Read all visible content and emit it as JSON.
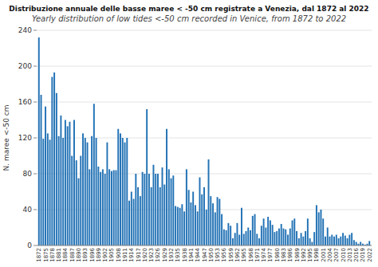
{
  "chart_data": {
    "type": "bar",
    "title": "Distribuzione annuale delle basse maree < -50 cm registrate a Venezia, dal 1872 al 2022",
    "subtitle": "Yearly distribution of low tides <-50 cm recorded in Venice, from 1872 to 2022",
    "ylabel": "N. maree <-50 cm",
    "color": "#2272b5",
    "ylim": [
      0,
      240
    ],
    "yticks": [
      0,
      40,
      80,
      120,
      160,
      200,
      240
    ],
    "grid": true,
    "categories": [
      "1872",
      null,
      null,
      "1875",
      null,
      null,
      "1878",
      null,
      null,
      "1881",
      null,
      null,
      "1884",
      null,
      null,
      "1887",
      null,
      null,
      "1890",
      null,
      null,
      "1893",
      null,
      null,
      "1896",
      null,
      null,
      "1899",
      null,
      null,
      "1902",
      null,
      null,
      "1905",
      null,
      null,
      "1908",
      null,
      null,
      "1911",
      null,
      null,
      "1914",
      null,
      null,
      "1917",
      null,
      null,
      "1920",
      null,
      null,
      "1923",
      null,
      null,
      "1926",
      null,
      null,
      "1929",
      null,
      null,
      "1932",
      null,
      null,
      "1935",
      null,
      null,
      "1938",
      null,
      null,
      "1941",
      null,
      null,
      "1944",
      null,
      null,
      "1947",
      null,
      null,
      "1950",
      null,
      null,
      "1953",
      null,
      null,
      "1956",
      null,
      null,
      "1959",
      null,
      null,
      "1962",
      null,
      null,
      "1965",
      null,
      null,
      "1968",
      null,
      null,
      "1971",
      null,
      null,
      "1974",
      null,
      null,
      "1977",
      null,
      null,
      "1980",
      null,
      null,
      "1983",
      null,
      null,
      "1986",
      null,
      null,
      "1989",
      null,
      null,
      "1992",
      null,
      null,
      "1995",
      null,
      null,
      "1998",
      null,
      null,
      "2001",
      null,
      null,
      "2004",
      null,
      null,
      "2007",
      null,
      null,
      "2010",
      null,
      null,
      "2013",
      null,
      null,
      "2016",
      null,
      null,
      "2019",
      null,
      null,
      "2022"
    ],
    "values": [
      232,
      168,
      119,
      155,
      125,
      118,
      188,
      193,
      170,
      122,
      145,
      120,
      140,
      133,
      138,
      100,
      140,
      95,
      75,
      100,
      125,
      120,
      115,
      85,
      122,
      158,
      120,
      88,
      82,
      85,
      80,
      115,
      85,
      83,
      84,
      84,
      130,
      125,
      120,
      115,
      120,
      50,
      60,
      52,
      80,
      65,
      55,
      82,
      80,
      152,
      80,
      65,
      90,
      80,
      80,
      65,
      87,
      68,
      130,
      85,
      75,
      78,
      44,
      43,
      42,
      46,
      38,
      85,
      62,
      48,
      60,
      45,
      38,
      76,
      57,
      65,
      40,
      96,
      55,
      47,
      37,
      54,
      52,
      35,
      18,
      17,
      25,
      22,
      8,
      14,
      25,
      12,
      42,
      13,
      16,
      20,
      17,
      33,
      35,
      13,
      8,
      22,
      30,
      20,
      32,
      28,
      23,
      15,
      16,
      19,
      24,
      19,
      18,
      12,
      19,
      28,
      30,
      16,
      8,
      14,
      10,
      16,
      30,
      8,
      4,
      15,
      45,
      37,
      40,
      30,
      10,
      20,
      10,
      12,
      10,
      12,
      8,
      10,
      14,
      11,
      8,
      12,
      14,
      6,
      4,
      2,
      4,
      2,
      1,
      2,
      5
    ]
  }
}
